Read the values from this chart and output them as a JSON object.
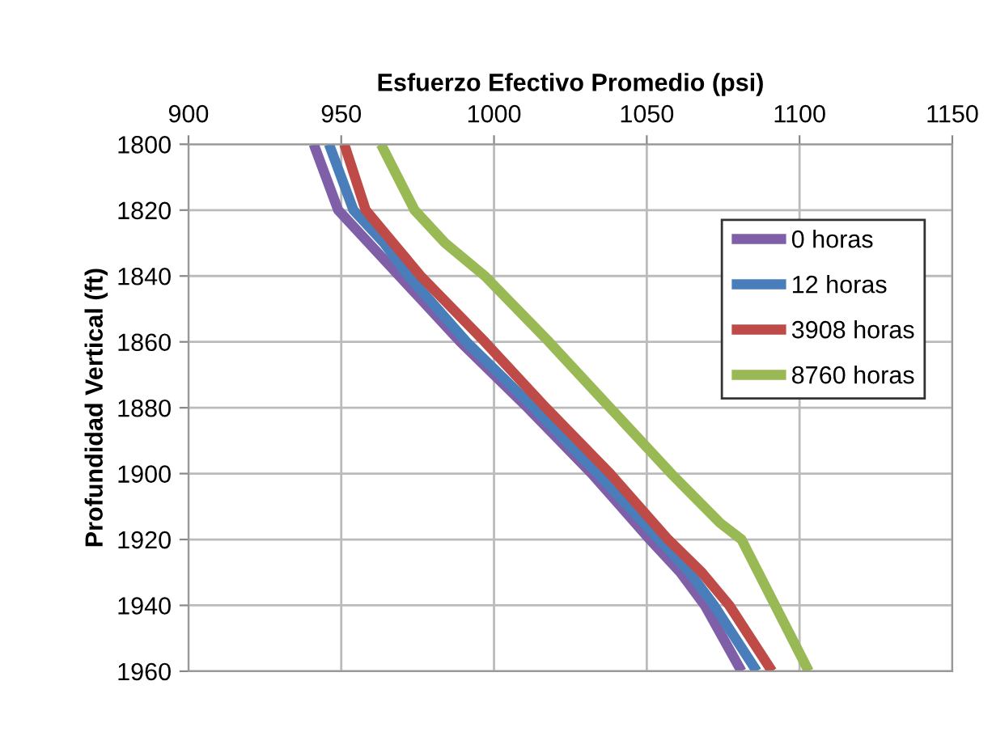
{
  "chart_data": {
    "type": "line",
    "xlabel": "Esfuerzo Efectivo Promedio (psi)",
    "ylabel": "Profundidad Vertical (ft)",
    "xlim": [
      900,
      1150
    ],
    "xticks": [
      900,
      950,
      1000,
      1050,
      1100,
      1150
    ],
    "ylim": [
      1960,
      1800
    ],
    "yticks": [
      1800,
      1820,
      1840,
      1860,
      1880,
      1900,
      1920,
      1940,
      1960
    ],
    "grid": true,
    "legend": "top right",
    "marker": "none",
    "line_style": "solid",
    "series": [
      {
        "name": "0 horas",
        "color": "#7f5fa8",
        "x": [
          941,
          949,
          959,
          969,
          989,
          1011,
          1032,
          1051,
          1061,
          1069,
          1081
        ],
        "values": [
          1800,
          1820,
          1830,
          1840,
          1860,
          1880,
          1900,
          1920,
          1930,
          1940,
          1960
        ]
      },
      {
        "name": "12 horas",
        "color": "#4a7ebb",
        "x": [
          946,
          954,
          964,
          972,
          991,
          1013,
          1034,
          1054,
          1064,
          1072,
          1086
        ],
        "values": [
          1800,
          1820,
          1830,
          1840,
          1860,
          1880,
          1900,
          1920,
          1930,
          1940,
          1960
        ]
      },
      {
        "name": "3908 horas",
        "color": "#be4b48",
        "x": [
          951,
          958,
          967,
          976,
          997,
          1017,
          1038,
          1057,
          1068,
          1077,
          1091
        ],
        "values": [
          1800,
          1820,
          1830,
          1840,
          1860,
          1880,
          1900,
          1920,
          1930,
          1940,
          1960
        ]
      },
      {
        "name": "8760 horas",
        "color": "#98b954",
        "x": [
          963,
          974,
          984,
          997,
          1018,
          1038,
          1058,
          1074,
          1081,
          1092,
          1103
        ],
        "values": [
          1800,
          1820,
          1830,
          1840,
          1860,
          1880,
          1900,
          1915,
          1920,
          1940,
          1960
        ]
      }
    ]
  }
}
